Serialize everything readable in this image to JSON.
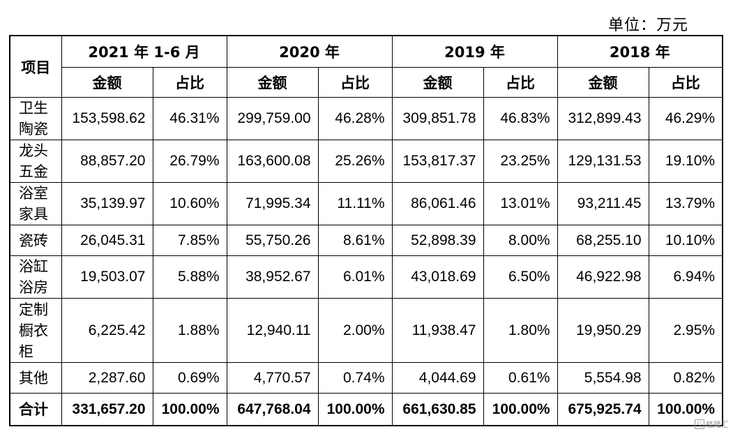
{
  "unit_label": "单位：万元",
  "header": {
    "item": "项目",
    "periods": [
      "2021 年 1-6 月",
      "2020 年",
      "2019 年",
      "2018 年"
    ],
    "amount": "金额",
    "share": "占比"
  },
  "rows": [
    {
      "name": "卫生陶瓷",
      "values": [
        "153,598.62",
        "46.31%",
        "299,759.00",
        "46.28%",
        "309,851.78",
        "46.83%",
        "312,899.43",
        "46.29%"
      ]
    },
    {
      "name": "龙头五金",
      "values": [
        "88,857.20",
        "26.79%",
        "163,600.08",
        "25.26%",
        "153,817.37",
        "23.25%",
        "129,131.53",
        "19.10%"
      ]
    },
    {
      "name": "浴室家具",
      "values": [
        "35,139.97",
        "10.60%",
        "71,995.34",
        "11.11%",
        "86,061.46",
        "13.01%",
        "93,211.45",
        "13.79%"
      ]
    },
    {
      "name": "瓷砖",
      "values": [
        "26,045.31",
        "7.85%",
        "55,750.26",
        "8.61%",
        "52,898.39",
        "8.00%",
        "68,255.10",
        "10.10%"
      ]
    },
    {
      "name": "浴缸浴房",
      "values": [
        "19,503.07",
        "5.88%",
        "38,952.67",
        "6.01%",
        "43,018.69",
        "6.50%",
        "46,922.98",
        "6.94%"
      ]
    },
    {
      "name": "定制橱衣柜",
      "values": [
        "6,225.42",
        "1.88%",
        "12,940.11",
        "2.00%",
        "11,938.47",
        "1.80%",
        "19,950.29",
        "2.95%"
      ]
    },
    {
      "name": "其他",
      "values": [
        "2,287.60",
        "0.69%",
        "4,770.57",
        "0.74%",
        "4,044.69",
        "0.61%",
        "5,554.98",
        "0.82%"
      ]
    }
  ],
  "total": {
    "name": "合计",
    "values": [
      "331,657.20",
      "100.00%",
      "647,768.04",
      "100.00%",
      "661,630.85",
      "100.00%",
      "675,925.74",
      "100.00%"
    ]
  },
  "watermark": "格隆汇"
}
